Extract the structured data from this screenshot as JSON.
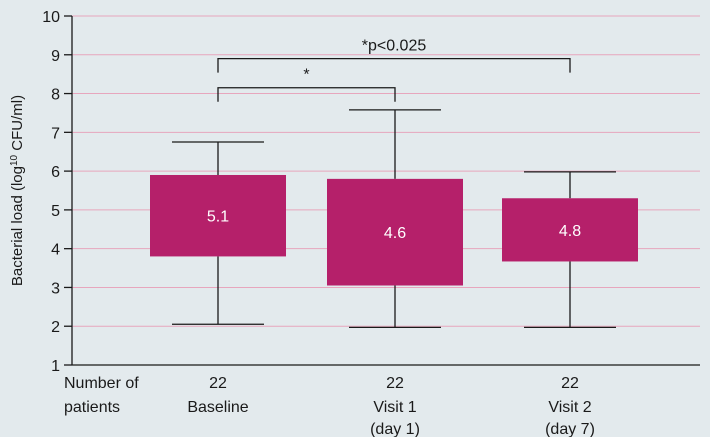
{
  "chart_data": {
    "type": "boxplot",
    "ylabel": {
      "prefix": "Bacterial load (log",
      "sup": "10",
      "suffix": " CFU/ml)"
    },
    "ylim": [
      1,
      10
    ],
    "yticks": [
      1,
      2,
      3,
      4,
      5,
      6,
      7,
      8,
      9,
      10
    ],
    "grid": true,
    "box_color": "#b5206a",
    "patients_label": [
      "Number of",
      "patients"
    ],
    "groups": [
      {
        "label": [
          "Baseline"
        ],
        "n": "22",
        "whisker_low": 2.05,
        "q1": 3.8,
        "q3": 5.9,
        "whisker_high": 6.75,
        "median_label": "5.1"
      },
      {
        "label": [
          "Visit 1",
          "(day 1)"
        ],
        "n": "22",
        "whisker_low": 1.97,
        "q1": 3.05,
        "q3": 5.8,
        "whisker_high": 7.58,
        "median_label": "4.6"
      },
      {
        "label": [
          "Visit 2",
          "(day 7)"
        ],
        "n": "22",
        "whisker_low": 1.97,
        "q1": 3.67,
        "q3": 5.3,
        "whisker_high": 5.98,
        "median_label": "4.8"
      }
    ],
    "annotations": [
      {
        "from": 0,
        "to": 1,
        "y": 8.15,
        "text": "*"
      },
      {
        "from": 0,
        "to": 2,
        "y": 8.9,
        "text": "*p<0.025"
      }
    ]
  }
}
